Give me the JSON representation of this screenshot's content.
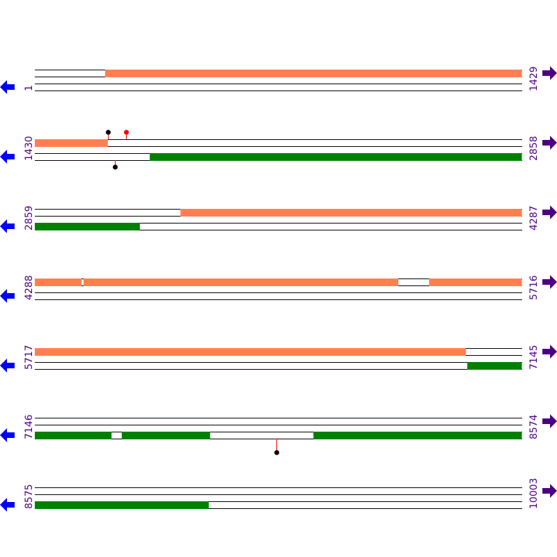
{
  "colors": {
    "forward_feature": "#ff7f50",
    "reverse_feature": "#008000",
    "label": "#4b0082",
    "left_arrow": "#0000ff",
    "right_arrow": "#4b0082",
    "stick": "#ff0000",
    "marker_black": "#000000",
    "marker_red": "#ff0000"
  },
  "icons": {
    "left": "arrow-left-icon",
    "right": "arrow-right-icon"
  },
  "rows": [
    {
      "start": "1",
      "end": "1429",
      "s": 1,
      "e": 1429,
      "top": [
        [
          207,
          1429
        ]
      ],
      "bottom": [],
      "markers": []
    },
    {
      "start": "1430",
      "end": "2858",
      "s": 1430,
      "e": 2858,
      "top": [
        [
          1430,
          1644
        ]
      ],
      "bottom": [
        [
          1767,
          2858
        ]
      ],
      "markers": [
        {
          "pos": 1644,
          "side": "top",
          "color": "black"
        },
        {
          "pos": 1697,
          "side": "top",
          "color": "red"
        },
        {
          "pos": 1665,
          "side": "bottom",
          "color": "black"
        }
      ]
    },
    {
      "start": "2859",
      "end": "4287",
      "s": 2859,
      "e": 4287,
      "top": [
        [
          3286,
          4287
        ]
      ],
      "bottom": [
        [
          2859,
          3167
        ]
      ],
      "markers": []
    },
    {
      "start": "4288",
      "end": "5716",
      "s": 4288,
      "e": 5716,
      "top": [
        [
          4288,
          4425
        ],
        [
          4431,
          5354
        ],
        [
          5444,
          5716
        ]
      ],
      "bottom": [],
      "markers": []
    },
    {
      "start": "5717",
      "end": "7145",
      "s": 5717,
      "e": 7145,
      "top": [
        [
          5717,
          6981
        ]
      ],
      "bottom": [
        [
          6985,
          7145
        ]
      ],
      "markers": []
    },
    {
      "start": "7146",
      "end": "8574",
      "s": 7146,
      "e": 8574,
      "top": [],
      "bottom": [
        [
          7146,
          7371
        ],
        [
          7401,
          7660
        ],
        [
          7963,
          8574
        ]
      ],
      "markers": [
        {
          "pos": 7854,
          "side": "bottom-long",
          "color": "black"
        }
      ]
    },
    {
      "start": "8575",
      "end": "10003",
      "s": 8575,
      "e": 10003,
      "top": [],
      "bottom": [
        [
          8575,
          9085
        ]
      ],
      "markers": []
    }
  ]
}
